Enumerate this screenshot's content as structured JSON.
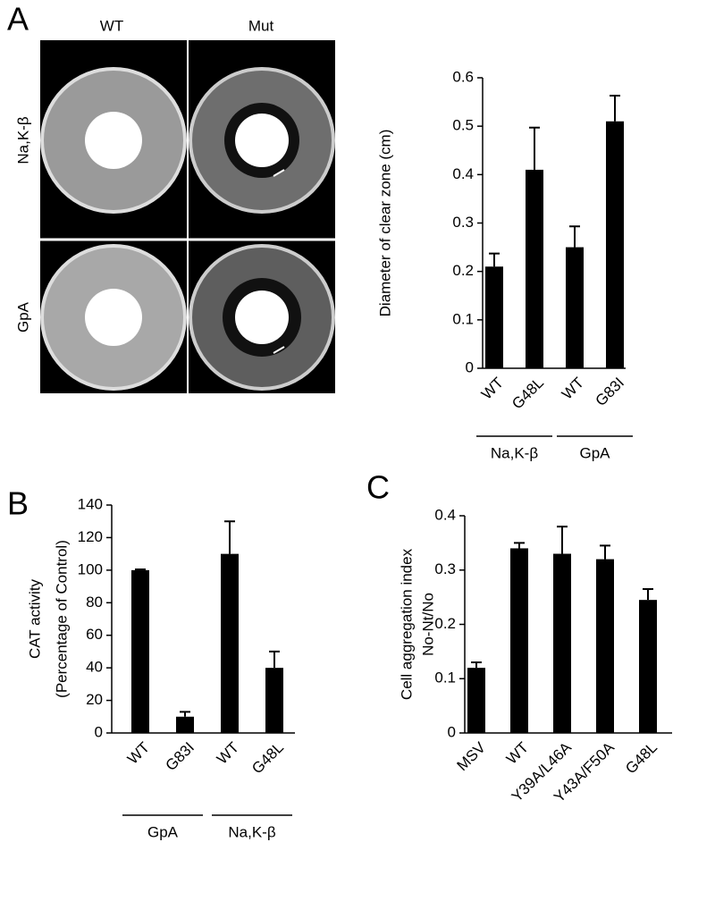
{
  "panel_labels": [
    "A",
    "B",
    "C"
  ],
  "photo_grid": {
    "columns": [
      "WT",
      "Mut"
    ],
    "rows": [
      "Na,K-β",
      "GpA"
    ]
  },
  "chart_data": [
    {
      "type": "bar",
      "ylabel": [
        "Diameter of clear zone (cm)"
      ],
      "color": "#000000",
      "ylim": [
        0,
        0.6
      ],
      "yticks": [
        0,
        0.1,
        0.2,
        0.3,
        0.4,
        0.5,
        0.6
      ],
      "groups": [
        {
          "name": "Na,K-β",
          "categories": [
            "WT",
            "G48L"
          ],
          "values": [
            0.21,
            0.41
          ],
          "errors": [
            0.027,
            0.087
          ]
        },
        {
          "name": "GpA",
          "categories": [
            "WT",
            "G83I"
          ],
          "values": [
            0.25,
            0.51
          ],
          "errors": [
            0.043,
            0.053
          ]
        }
      ]
    },
    {
      "type": "bar",
      "ylabel": [
        "CAT activity",
        "(Percentage of Control)"
      ],
      "color": "#000000",
      "ylim": [
        0,
        140
      ],
      "yticks": [
        0,
        20,
        40,
        60,
        80,
        100,
        120,
        140
      ],
      "groups": [
        {
          "name": "GpA",
          "categories": [
            "WT",
            "G83I"
          ],
          "values": [
            100,
            10
          ],
          "errors": [
            0.5,
            3
          ]
        },
        {
          "name": "Na,K-β",
          "categories": [
            "WT",
            "G48L"
          ],
          "values": [
            110,
            40
          ],
          "errors": [
            20,
            10
          ]
        }
      ]
    },
    {
      "type": "bar",
      "ylabel": [
        "Cell aggregation index",
        "No-Nt/No"
      ],
      "color": "#000000",
      "ylim": [
        0,
        0.4
      ],
      "yticks": [
        0,
        0.1,
        0.2,
        0.3,
        0.4
      ],
      "groups": [
        {
          "categories": [
            "MSV",
            "WT",
            "Y39A/L46A",
            "Y43A/F50A",
            "G48L"
          ],
          "values": [
            0.12,
            0.34,
            0.33,
            0.32,
            0.245
          ],
          "errors": [
            0.01,
            0.01,
            0.05,
            0.025,
            0.02
          ]
        }
      ]
    }
  ]
}
